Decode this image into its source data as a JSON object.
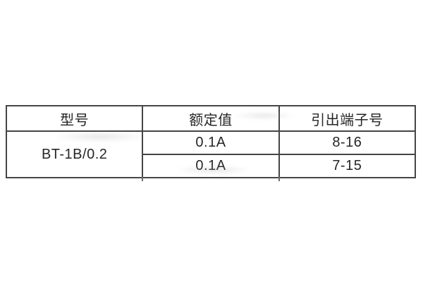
{
  "colors": {
    "background": "#ffffff",
    "table_border": "#454545",
    "text": "#262626"
  },
  "table": {
    "columns": [
      {
        "key": "model",
        "label": "型号"
      },
      {
        "key": "rated_value",
        "label": "额定值"
      },
      {
        "key": "terminal_numbers",
        "label": "引出端子号"
      }
    ],
    "model": "BT-1B/0.2",
    "rows": [
      {
        "rated_value": "0.1A",
        "terminal_numbers": "8-16"
      },
      {
        "rated_value": "0.1A",
        "terminal_numbers": "7-15"
      }
    ]
  },
  "chart_data": {
    "type": "table",
    "title": "",
    "columns": [
      "型号",
      "额定值",
      "引出端子号"
    ],
    "rows": [
      [
        "BT-1B/0.2",
        "0.1A",
        "8-16"
      ],
      [
        "BT-1B/0.2",
        "0.1A",
        "7-15"
      ]
    ],
    "merged_cells": [
      {
        "column": "型号",
        "value": "BT-1B/0.2",
        "rowspan": 2
      }
    ]
  }
}
